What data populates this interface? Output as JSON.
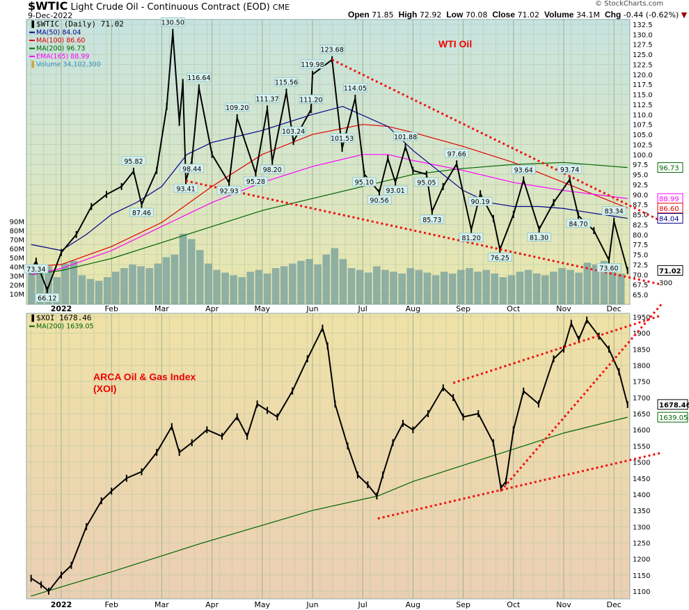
{
  "header": {
    "symbol": "$WTIC",
    "name": "Light Crude Oil - Continuous Contract (EOD)",
    "exchange": "CME",
    "date": "9-Dec-2022",
    "brand": "© StockCharts.com",
    "open_label": "Open",
    "open": "71.85",
    "high_label": "High",
    "high": "72.92",
    "low_label": "Low",
    "low": "70.08",
    "close_label": "Close",
    "close": "71.02",
    "volume_label": "Volume",
    "volume": "34.1M",
    "chg_label": "Chg",
    "chg": "-0.44 (-0.62%)"
  },
  "colors": {
    "ma50": "#00008b",
    "ma100": "#e00000",
    "ma200": "#006400",
    "ema165": "#ff00ff",
    "volume": "#7fa6a0",
    "trend": "#ee1111",
    "candle": "#000000"
  },
  "chart_data": [
    {
      "type": "line",
      "title": "$WTIC (Daily) 71.02",
      "annotation": "WTI Oil",
      "ylim": [
        65,
        132.5
      ],
      "yticks": [
        65,
        67.5,
        70,
        72.5,
        75,
        77.5,
        80,
        82.5,
        85,
        87.5,
        90,
        92.5,
        95,
        97.5,
        100,
        102.5,
        105,
        107.5,
        110,
        112.5,
        115,
        117.5,
        120,
        122.5,
        125,
        127.5,
        130,
        132.5
      ],
      "x_unit": "months since 1-Jan-2022",
      "month_labels": [
        "2022",
        "Feb",
        "Mar",
        "Apr",
        "May",
        "Jun",
        "Jul",
        "Aug",
        "Sep",
        "Oct",
        "Nov",
        "Dec"
      ],
      "legend": [
        {
          "key": "price",
          "text": "$WTIC (Daily) 71.02"
        },
        {
          "key": "ma50",
          "text": "MA(50) 84.04"
        },
        {
          "key": "ma100",
          "text": "MA(100) 86.60"
        },
        {
          "key": "ma200",
          "text": "MA(200) 96.73"
        },
        {
          "key": "ema165",
          "text": "EMA(165) 88.99"
        },
        {
          "key": "volume",
          "text": "Volume 34,102,300"
        }
      ],
      "price": [
        [
          -0.62,
          71
        ],
        [
          -0.5,
          73.34
        ],
        [
          -0.28,
          66.12
        ],
        [
          0,
          75.5
        ],
        [
          0.3,
          80
        ],
        [
          0.6,
          87
        ],
        [
          0.9,
          90
        ],
        [
          1.2,
          92
        ],
        [
          1.44,
          95.82
        ],
        [
          1.6,
          87.46
        ],
        [
          1.9,
          96
        ],
        [
          2.1,
          112
        ],
        [
          2.22,
          130.5
        ],
        [
          2.35,
          108
        ],
        [
          2.42,
          118
        ],
        [
          2.48,
          93.41
        ],
        [
          2.6,
          98.44
        ],
        [
          2.74,
          116.64
        ],
        [
          3.0,
          100
        ],
        [
          3.34,
          92.93
        ],
        [
          3.5,
          109.2
        ],
        [
          3.87,
          95.28
        ],
        [
          4.1,
          111.37
        ],
        [
          4.2,
          98.2
        ],
        [
          4.48,
          115.56
        ],
        [
          4.62,
          103.24
        ],
        [
          4.97,
          111.2
        ],
        [
          5.0,
          119.98
        ],
        [
          5.39,
          123.68
        ],
        [
          5.59,
          101.53
        ],
        [
          5.85,
          114.05
        ],
        [
          6.03,
          95.1
        ],
        [
          6.33,
          90.56
        ],
        [
          6.5,
          99
        ],
        [
          6.65,
          93.01
        ],
        [
          6.85,
          101.88
        ],
        [
          7.0,
          96
        ],
        [
          7.27,
          95.05
        ],
        [
          7.38,
          85.73
        ],
        [
          7.6,
          92
        ],
        [
          7.87,
          97.66
        ],
        [
          8.16,
          81.2
        ],
        [
          8.34,
          90.19
        ],
        [
          8.6,
          84
        ],
        [
          8.73,
          76.25
        ],
        [
          9.0,
          85
        ],
        [
          9.2,
          93.64
        ],
        [
          9.51,
          81.3
        ],
        [
          9.8,
          88
        ],
        [
          10.12,
          93.74
        ],
        [
          10.29,
          84.7
        ],
        [
          10.6,
          81
        ],
        [
          10.9,
          73.6
        ],
        [
          11.0,
          83.34
        ],
        [
          11.27,
          71.02
        ]
      ],
      "ma50": [
        [
          -0.6,
          77.5
        ],
        [
          0,
          76
        ],
        [
          0.5,
          80
        ],
        [
          1,
          85
        ],
        [
          1.5,
          88
        ],
        [
          2,
          92
        ],
        [
          2.5,
          100
        ],
        [
          3,
          103
        ],
        [
          4,
          106
        ],
        [
          5,
          110
        ],
        [
          5.6,
          112
        ],
        [
          6.5,
          107
        ],
        [
          7,
          101
        ],
        [
          7.5,
          96
        ],
        [
          8,
          91
        ],
        [
          8.5,
          88
        ],
        [
          9,
          87
        ],
        [
          9.5,
          87
        ],
        [
          10,
          86.5
        ],
        [
          10.5,
          85.5
        ],
        [
          11.27,
          84.04
        ]
      ],
      "ma100": [
        [
          -0.6,
          72
        ],
        [
          0,
          72.5
        ],
        [
          1,
          77
        ],
        [
          2,
          83
        ],
        [
          3,
          92
        ],
        [
          4,
          100
        ],
        [
          5,
          105
        ],
        [
          6,
          107.5
        ],
        [
          6.5,
          107
        ],
        [
          7,
          105.5
        ],
        [
          8,
          102
        ],
        [
          9,
          98
        ],
        [
          10,
          93
        ],
        [
          11.27,
          86.6
        ]
      ],
      "ma200": [
        [
          -0.6,
          70
        ],
        [
          0,
          71
        ],
        [
          1,
          74
        ],
        [
          2,
          78
        ],
        [
          3,
          82
        ],
        [
          4,
          86
        ],
        [
          5,
          89
        ],
        [
          6,
          92
        ],
        [
          7,
          95
        ],
        [
          8,
          96.5
        ],
        [
          9,
          97.5
        ],
        [
          10,
          98
        ],
        [
          11.27,
          96.73
        ]
      ],
      "ema165": [
        [
          -0.6,
          70
        ],
        [
          0,
          71.5
        ],
        [
          1,
          76
        ],
        [
          2,
          82
        ],
        [
          3,
          88
        ],
        [
          4,
          93
        ],
        [
          5,
          97
        ],
        [
          6,
          100
        ],
        [
          6.5,
          100
        ],
        [
          7,
          98.5
        ],
        [
          8,
          96
        ],
        [
          9,
          93
        ],
        [
          10,
          91
        ],
        [
          11.27,
          88.99
        ]
      ],
      "volume_ticks": [
        "10M",
        "20M",
        "30M",
        "40M",
        "50M",
        "60M",
        "70M",
        "80M",
        "90M"
      ],
      "volume_millions": [
        38,
        35,
        42,
        30,
        45,
        48,
        32,
        28,
        26,
        30,
        36,
        40,
        44,
        42,
        40,
        45,
        52,
        55,
        78,
        72,
        60,
        45,
        38,
        35,
        32,
        30,
        36,
        38,
        34,
        40,
        42,
        45,
        48,
        50,
        44,
        55,
        62,
        50,
        40,
        38,
        35,
        42,
        38,
        36,
        34,
        40,
        38,
        35,
        32,
        36,
        34,
        38,
        40,
        36,
        38,
        34,
        30,
        32,
        36,
        38,
        34,
        32,
        36,
        40,
        38,
        35,
        46,
        44,
        48,
        38,
        34
      ],
      "price_labels": [
        [
          2.22,
          130.5,
          "130.50"
        ],
        [
          5.39,
          123.68,
          "123.68"
        ],
        [
          5.0,
          119.98,
          "119.98"
        ],
        [
          2.74,
          116.64,
          "116.64"
        ],
        [
          4.48,
          115.56,
          "115.56"
        ],
        [
          5.85,
          114.05,
          "114.05"
        ],
        [
          4.1,
          111.37,
          "111.37"
        ],
        [
          4.97,
          111.2,
          "111.20"
        ],
        [
          3.5,
          109.2,
          "109.20"
        ],
        [
          4.62,
          103.24,
          "103.24"
        ],
        [
          6.85,
          101.88,
          "101.88"
        ],
        [
          5.59,
          101.53,
          "101.53"
        ],
        [
          2.6,
          98.44,
          "98.44"
        ],
        [
          4.2,
          98.2,
          "98.20"
        ],
        [
          7.87,
          97.66,
          "97.66"
        ],
        [
          1.44,
          95.82,
          "95.82"
        ],
        [
          3.87,
          95.28,
          "95.28"
        ],
        [
          6.03,
          95.1,
          "95.10"
        ],
        [
          7.27,
          95.05,
          "95.05"
        ],
        [
          10.12,
          93.74,
          "93.74"
        ],
        [
          9.2,
          93.64,
          "93.64"
        ],
        [
          2.48,
          93.41,
          "93.41"
        ],
        [
          6.65,
          93.01,
          "93.01"
        ],
        [
          3.34,
          92.93,
          "92.93"
        ],
        [
          6.33,
          90.56,
          "90.56"
        ],
        [
          8.34,
          90.19,
          "90.19"
        ],
        [
          1.6,
          87.46,
          "87.46"
        ],
        [
          7.38,
          85.73,
          "85.73"
        ],
        [
          10.29,
          84.7,
          "84.70"
        ],
        [
          11.0,
          83.34,
          "83.34"
        ],
        [
          9.51,
          81.3,
          "81.30"
        ],
        [
          8.16,
          81.2,
          "81.20"
        ],
        [
          8.73,
          76.25,
          "76.25"
        ],
        [
          -0.5,
          73.34,
          "73.34"
        ],
        [
          10.9,
          73.6,
          "73.60"
        ],
        [
          -0.28,
          66.12,
          "66.12"
        ]
      ],
      "value_tags": [
        {
          "key": "ma200",
          "text": "96.73",
          "v": 96.73
        },
        {
          "key": "ema165",
          "text": "88.99",
          "v": 88.99
        },
        {
          "key": "ma100",
          "text": "86.60",
          "v": 86.6
        },
        {
          "key": "ma50",
          "text": "84.04",
          "v": 84.04
        },
        {
          "key": "price",
          "text": "71.02",
          "v": 71.02
        }
      ],
      "volume_tag": "300",
      "trendlines": [
        [
          [
            5.39,
            123.68
          ],
          [
            11.95,
            83.3
          ]
        ],
        [
          [
            2.48,
            93.41
          ],
          [
            11.95,
            67.5
          ]
        ]
      ]
    },
    {
      "type": "line",
      "title": "$XOI 1678.46",
      "annotation": "ARCA Oil & Gas Index",
      "annotation2": "(XOI)",
      "ylim": [
        1100,
        1950
      ],
      "yticks": [
        1100,
        1150,
        1200,
        1250,
        1300,
        1350,
        1400,
        1450,
        1500,
        1550,
        1600,
        1650,
        1700,
        1750,
        1800,
        1850,
        1900,
        1950
      ],
      "legend": [
        {
          "key": "price",
          "text": "$XOI 1678.46"
        },
        {
          "key": "ma200",
          "text": "MA(200) 1639.05"
        }
      ],
      "price": [
        [
          -0.6,
          1140
        ],
        [
          -0.4,
          1120
        ],
        [
          -0.25,
          1100
        ],
        [
          0,
          1150
        ],
        [
          0.2,
          1180
        ],
        [
          0.5,
          1300
        ],
        [
          0.8,
          1380
        ],
        [
          1.0,
          1410
        ],
        [
          1.3,
          1450
        ],
        [
          1.6,
          1470
        ],
        [
          1.9,
          1530
        ],
        [
          2.2,
          1610
        ],
        [
          2.35,
          1530
        ],
        [
          2.6,
          1560
        ],
        [
          2.9,
          1600
        ],
        [
          3.2,
          1580
        ],
        [
          3.5,
          1640
        ],
        [
          3.7,
          1580
        ],
        [
          3.9,
          1680
        ],
        [
          4.1,
          1660
        ],
        [
          4.3,
          1640
        ],
        [
          4.6,
          1720
        ],
        [
          4.9,
          1820
        ],
        [
          5.2,
          1915
        ],
        [
          5.3,
          1860
        ],
        [
          5.45,
          1680
        ],
        [
          5.7,
          1550
        ],
        [
          5.9,
          1460
        ],
        [
          6.1,
          1430
        ],
        [
          6.28,
          1395
        ],
        [
          6.4,
          1460
        ],
        [
          6.6,
          1560
        ],
        [
          6.8,
          1620
        ],
        [
          7.0,
          1600
        ],
        [
          7.3,
          1650
        ],
        [
          7.6,
          1730
        ],
        [
          7.8,
          1700
        ],
        [
          8.0,
          1640
        ],
        [
          8.3,
          1650
        ],
        [
          8.6,
          1560
        ],
        [
          8.75,
          1420
        ],
        [
          8.85,
          1440
        ],
        [
          9.0,
          1600
        ],
        [
          9.2,
          1720
        ],
        [
          9.5,
          1680
        ],
        [
          9.8,
          1820
        ],
        [
          10.0,
          1850
        ],
        [
          10.15,
          1930
        ],
        [
          10.3,
          1880
        ],
        [
          10.46,
          1940
        ],
        [
          10.7,
          1890
        ],
        [
          10.9,
          1850
        ],
        [
          11.1,
          1780
        ],
        [
          11.27,
          1678.46
        ]
      ],
      "ma200": [
        [
          -0.6,
          1085
        ],
        [
          1,
          1160
        ],
        [
          2.8,
          1249
        ],
        [
          5,
          1350
        ],
        [
          6.3,
          1395
        ],
        [
          7,
          1440
        ],
        [
          8,
          1490
        ],
        [
          8.8,
          1530
        ],
        [
          10,
          1590
        ],
        [
          11.27,
          1639.05
        ]
      ],
      "value_tags": [
        {
          "key": "price",
          "text": "1678.46",
          "v": 1678.46
        },
        {
          "key": "ma200",
          "text": "1639.05",
          "v": 1639.05
        }
      ],
      "trendlines": [
        [
          [
            6.3,
            1325
          ],
          [
            11.95,
            1529
          ]
        ],
        [
          [
            7.8,
            1745
          ],
          [
            11.95,
            1955
          ]
        ],
        [
          [
            8.75,
            1411
          ],
          [
            11.95,
            1990
          ]
        ]
      ]
    }
  ]
}
